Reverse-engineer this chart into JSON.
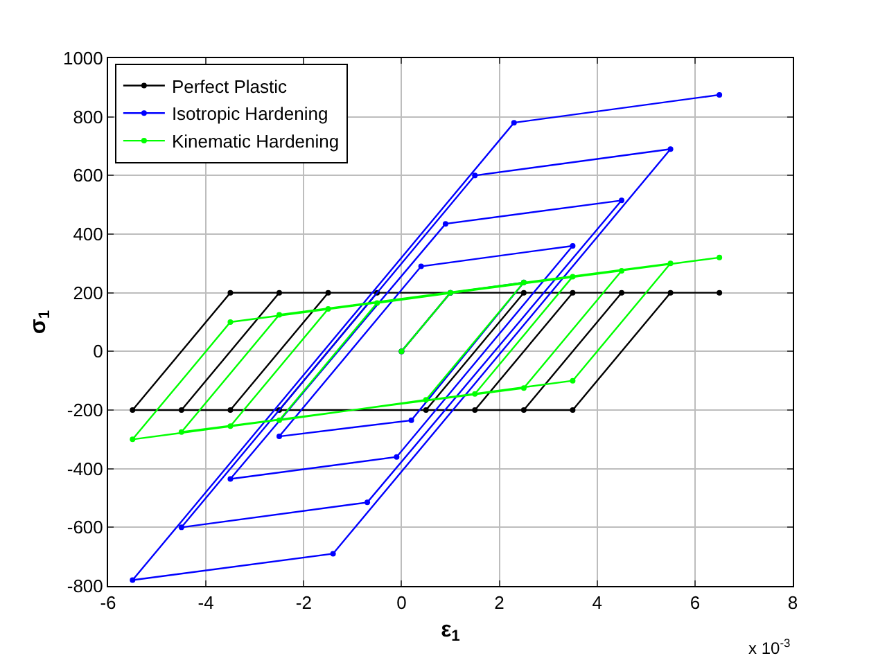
{
  "chart_data": {
    "type": "line",
    "xlabel": "ε$_{1}$",
    "ylabel": "σ$_{1}$",
    "annotations": [
      "x 10$^{-3}$"
    ],
    "xlim": [
      -6,
      8
    ],
    "xticks": [
      -6,
      -4,
      -2,
      0,
      2,
      4,
      6,
      8
    ],
    "ylim": [
      -800,
      1000
    ],
    "yticks": [
      -800,
      -600,
      -400,
      -200,
      0,
      200,
      400,
      600,
      800,
      1000
    ],
    "grid": true,
    "legend": "top left",
    "marker": "circle",
    "line_style": "solid",
    "series": [
      {
        "name": "Perfect Plastic",
        "color": "#000000",
        "x": [
          0,
          1,
          2.5,
          0.5,
          -2.5,
          -0.5,
          3.5,
          1.5,
          -3.5,
          -1.5,
          4.5,
          2.5,
          -4.5,
          -2.5,
          5.5,
          3.5,
          -5.5,
          -3.5,
          6.5
        ],
        "values": [
          0,
          200,
          200,
          -200,
          -200,
          200,
          200,
          -200,
          -200,
          200,
          200,
          -200,
          -200,
          200,
          200,
          -200,
          -200,
          200,
          200
        ]
      },
      {
        "name": "Isotropic Hardening",
        "color": "#0000ff",
        "x": [
          0,
          1,
          2.5,
          0.2,
          -2.5,
          0.4,
          3.5,
          -0.1,
          -3.5,
          0.9,
          4.5,
          -0.7,
          -4.5,
          1.5,
          5.5,
          -1.4,
          -5.5,
          2.3,
          6.5
        ],
        "values": [
          0,
          200,
          235,
          -235,
          -290,
          290,
          360,
          -360,
          -435,
          435,
          515,
          -515,
          -600,
          600,
          690,
          -690,
          -780,
          780,
          875
        ]
      },
      {
        "name": "Kinematic Hardening",
        "color": "#00ff00",
        "x": [
          0,
          1,
          2.5,
          0.5,
          -2.5,
          -0.5,
          3.5,
          1.5,
          -3.5,
          -1.5,
          4.5,
          2.5,
          -4.5,
          -2.5,
          5.5,
          3.5,
          -5.5,
          -3.5,
          6.5
        ],
        "values": [
          0,
          200,
          235,
          -165,
          -235,
          165,
          255,
          -145,
          -255,
          145,
          275,
          -125,
          -275,
          125,
          300,
          -100,
          -300,
          100,
          320
        ]
      }
    ]
  }
}
